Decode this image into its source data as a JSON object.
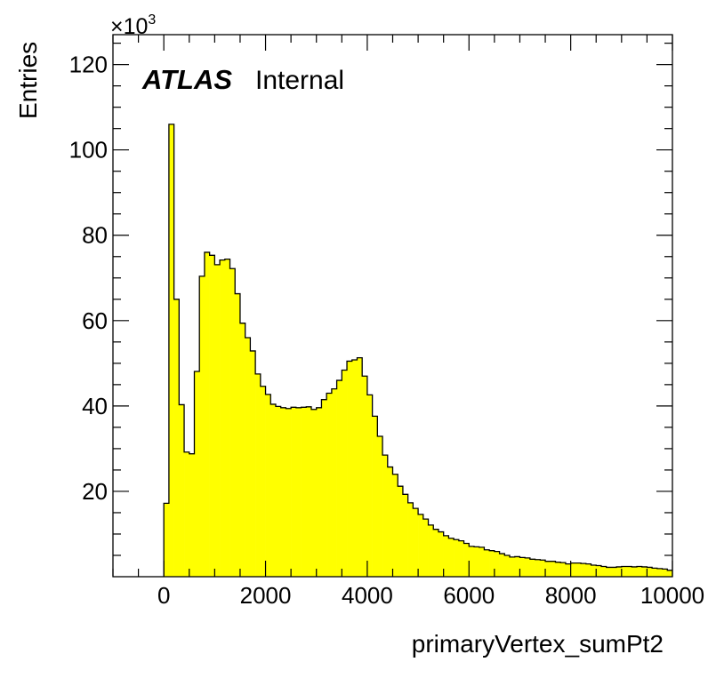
{
  "chart_data": {
    "type": "bar",
    "style": "histogram",
    "xlabel": "primaryVertex_sumPt2",
    "ylabel": "Entries",
    "y_exponent_label": "×10",
    "y_exponent_power": "3",
    "xlim": [
      -1000,
      10000
    ],
    "ylim": [
      0,
      127
    ],
    "x_ticks": [
      0,
      2000,
      4000,
      6000,
      8000,
      10000
    ],
    "x_tick_labels": [
      "0",
      "2000",
      "4000",
      "6000",
      "8000",
      "10000"
    ],
    "y_ticks": [
      20,
      40,
      60,
      80,
      100,
      120
    ],
    "y_tick_labels": [
      "20",
      "40",
      "60",
      "80",
      "100",
      "120"
    ],
    "grid": false,
    "annotation_bold": "ATLAS",
    "annotation_text": "Internal",
    "colors": {
      "fill": "#ffff00",
      "line": "#000000"
    },
    "bin_start": 0,
    "bin_width": 100,
    "values": [
      17.2,
      106,
      65,
      40.3,
      29.2,
      28.8,
      48.1,
      70.4,
      76,
      75.3,
      73.1,
      74.2,
      74.4,
      72.2,
      66.3,
      59.4,
      56,
      52.9,
      47.5,
      44.6,
      42.7,
      40.4,
      39.9,
      39.6,
      39.4,
      39.7,
      39.6,
      39.7,
      39.8,
      39.2,
      39.6,
      41.5,
      43,
      44,
      46,
      48.4,
      50.5,
      50.8,
      51.3,
      47,
      42.6,
      37.6,
      32.9,
      28.5,
      25.7,
      24,
      21.2,
      19.3,
      17.3,
      16,
      14.6,
      13.5,
      12.1,
      11.1,
      10.5,
      9.6,
      9,
      8.7,
      8.4,
      7.8,
      7.1,
      7,
      6.9,
      6.3,
      6.1,
      5.9,
      5.4,
      5,
      4.6,
      4.7,
      4.5,
      4.4,
      4.1,
      4,
      3.9,
      3.6,
      3.6,
      3.4,
      3.3,
      3,
      3.2,
      3.2,
      3.1,
      3,
      2.7,
      2.6,
      2.4,
      2.2,
      2.2,
      2.3,
      2.4,
      2.4,
      2.3,
      2.4,
      2.3,
      2.2,
      2,
      1.9,
      1.8,
      1.5
    ]
  }
}
